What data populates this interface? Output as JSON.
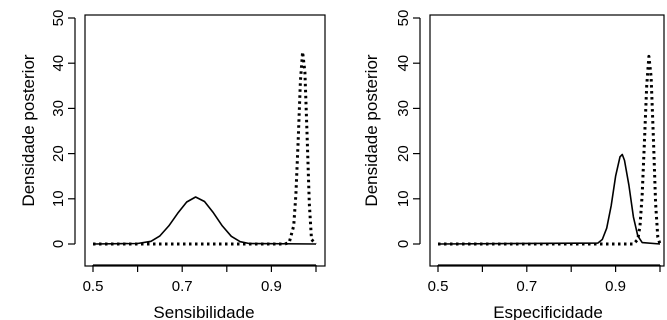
{
  "chart_data": [
    {
      "type": "line",
      "title": "",
      "xlabel": "Sensibilidade",
      "ylabel": "Densidade posterior",
      "xlim": [
        0.5,
        1.0
      ],
      "ylim": [
        0,
        50
      ],
      "xticks": [
        0.5,
        0.7,
        0.9
      ],
      "xtick_labels": [
        "0.5",
        "0.7",
        "0.9"
      ],
      "yticks": [
        0,
        10,
        20,
        30,
        40,
        50
      ],
      "ytick_labels": [
        "0",
        "10",
        "20",
        "30",
        "40",
        "50"
      ],
      "grid": false,
      "series": [
        {
          "style": "solid",
          "color": "#000000",
          "x": [
            0.5,
            0.6,
            0.63,
            0.65,
            0.67,
            0.69,
            0.71,
            0.73,
            0.75,
            0.77,
            0.79,
            0.81,
            0.83,
            0.85,
            1.0
          ],
          "y": [
            0,
            0.1,
            0.6,
            1.8,
            4.0,
            6.8,
            9.3,
            10.4,
            9.4,
            6.9,
            4.0,
            1.7,
            0.5,
            0.1,
            0
          ]
        },
        {
          "style": "dotted",
          "color": "#000000",
          "x": [
            0.5,
            0.93,
            0.94,
            0.95,
            0.955,
            0.96,
            0.965,
            0.97,
            0.975,
            0.98,
            0.985,
            0.99,
            1.0
          ],
          "y": [
            0,
            0,
            0.3,
            4.0,
            11.0,
            23.0,
            36.0,
            42.5,
            38.0,
            24.0,
            9.0,
            1.0,
            0
          ]
        }
      ]
    },
    {
      "type": "line",
      "title": "",
      "xlabel": "Especificidade",
      "ylabel": "Densidade posterior",
      "xlim": [
        0.5,
        1.0
      ],
      "ylim": [
        0,
        50
      ],
      "xticks": [
        0.5,
        0.7,
        0.9
      ],
      "xtick_labels": [
        "0.5",
        "0.7",
        "0.9"
      ],
      "yticks": [
        0,
        10,
        20,
        30,
        40,
        50
      ],
      "ytick_labels": [
        "0",
        "10",
        "20",
        "30",
        "40",
        "50"
      ],
      "grid": false,
      "series": [
        {
          "style": "solid",
          "color": "#000000",
          "x": [
            0.5,
            0.86,
            0.87,
            0.88,
            0.89,
            0.9,
            0.91,
            0.915,
            0.92,
            0.93,
            0.94,
            0.95,
            0.96,
            1.0
          ],
          "y": [
            0,
            0.2,
            1.0,
            3.5,
            8.5,
            15.0,
            19.3,
            19.8,
            18.5,
            13.0,
            6.0,
            1.8,
            0.3,
            0
          ]
        },
        {
          "style": "dotted",
          "color": "#000000",
          "x": [
            0.5,
            0.94,
            0.95,
            0.955,
            0.96,
            0.965,
            0.97,
            0.975,
            0.98,
            0.985,
            0.99,
            0.995,
            1.0
          ],
          "y": [
            0,
            0,
            1.0,
            4.0,
            11.0,
            23.0,
            35.0,
            41.5,
            37.0,
            24.0,
            9.0,
            1.5,
            0
          ]
        }
      ]
    }
  ]
}
